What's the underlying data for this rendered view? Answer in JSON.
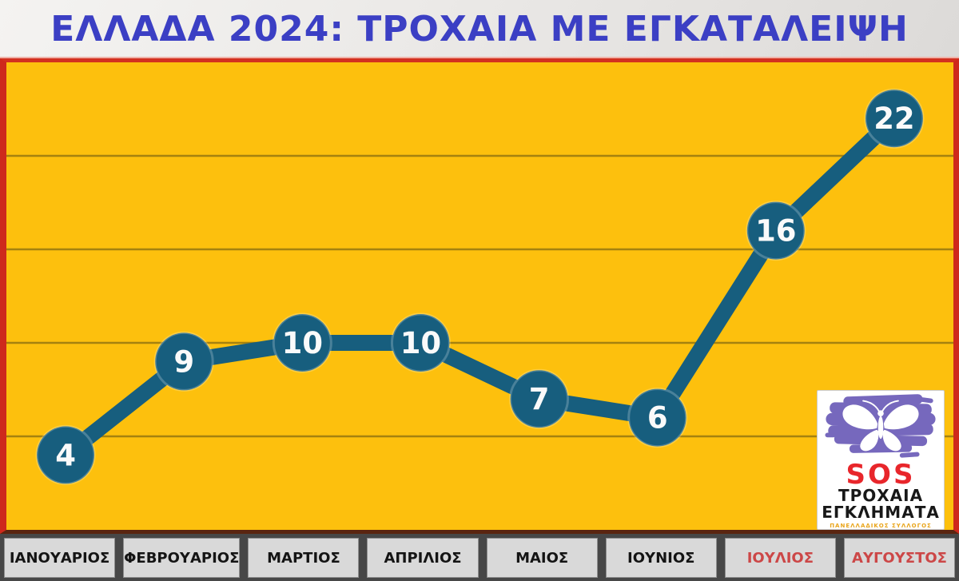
{
  "header": {
    "title": "ΕΛΛΑΔΑ 2024: ΤΡΟΧΑΙΑ ΜΕ ΕΓΚΑΤΑΛΕΙΨΗ"
  },
  "chart_data": {
    "type": "line",
    "title": "ΕΛΛΑΔΑ 2024: ΤΡΟΧΑΙΑ ΜΕ ΕΓΚΑΤΑΛΕΙΨΗ",
    "categories": [
      "ΙΑΝΟΥΑΡΙΟΣ",
      "ΦΕΒΡΟΥΑΡΙΟΣ",
      "ΜΑΡΤΙΟΣ",
      "ΑΠΡΙΛΙΟΣ",
      "ΜΑΙΟΣ",
      "ΙΟΥΝΙΟΣ",
      "ΙΟΥΛΙΟΣ",
      "ΑΥΓΟΥΣΤΟΣ"
    ],
    "values": [
      4,
      9,
      10,
      10,
      7,
      6,
      16,
      22
    ],
    "xlabel": "",
    "ylabel": "",
    "ylim": [
      0,
      25
    ],
    "gridlines": [
      5,
      10,
      15,
      20
    ],
    "grid": true,
    "legend": false,
    "marker_labels_shown": true
  },
  "months": [
    {
      "label": "ΙΑΝΟΥΑΡΙΟΣ",
      "highlight": false
    },
    {
      "label": "ΦΕΒΡΟΥΑΡΙΟΣ",
      "highlight": false
    },
    {
      "label": "ΜΑΡΤΙΟΣ",
      "highlight": false
    },
    {
      "label": "ΑΠΡΙΛΙΟΣ",
      "highlight": false
    },
    {
      "label": "ΜΑΙΟΣ",
      "highlight": false
    },
    {
      "label": "ΙΟΥΝΙΟΣ",
      "highlight": false
    },
    {
      "label": "ΙΟΥΛΙΟΣ",
      "highlight": true
    },
    {
      "label": "ΑΥΓΟΥΣΤΟΣ",
      "highlight": true
    }
  ],
  "logo": {
    "sos": "SOS",
    "line1": "ΤΡΟΧΑΙΑ",
    "line2": "ΕΓΚΛΗΜΑΤΑ",
    "line3": "ΠΑΝΕΛΛΑΔΙΚΟΣ ΣΥΛΛΟΓΟΣ",
    "butterfly_icon": "butterfly-icon"
  },
  "colors": {
    "title_blue": "#3b3fc4",
    "chart_bg": "#fdc00d",
    "border_red": "#ce291c",
    "line_teal": "#175e7e",
    "grid_line": "#a5820f",
    "marker_label_white": "#fafafa",
    "footer_bg": "#474747",
    "cell_bg": "#d9d9d9",
    "month_red": "#cc4747",
    "logo_purple": "#7668bd",
    "sos_red": "#e8262b",
    "logo_small_orange": "#e9a51c"
  }
}
